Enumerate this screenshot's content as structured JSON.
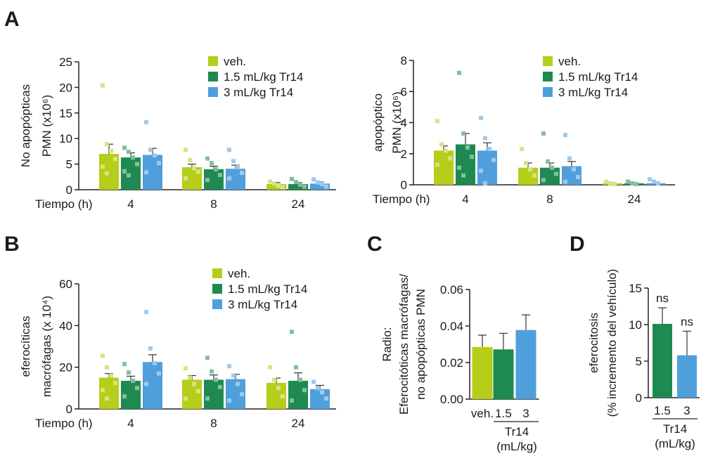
{
  "chart_data": [
    {
      "panel": "A",
      "type": "bar",
      "ylabel_lines": [
        "No apopópticas",
        "PMN (x10⁶)"
      ],
      "xlabel": "Tiempo (h)",
      "categories": [
        "4",
        "8",
        "24"
      ],
      "ylim": [
        0,
        25
      ],
      "yticks": [
        0,
        5,
        10,
        15,
        20,
        25
      ],
      "series": [
        {
          "name": "veh.",
          "color": "#b6cd1a",
          "values": [
            7.0,
            4.4,
            1.1
          ],
          "errors": [
            1.9,
            0.6,
            0.3
          ],
          "points": [
            [
              20.4,
              8.9,
              7.6,
              6.0,
              4.5,
              3.2
            ],
            [
              7.8,
              5.8,
              4.2,
              3.5,
              2.2
            ],
            [
              1.6,
              1.2,
              0.8,
              0.5
            ]
          ]
        },
        {
          "name": "1.5 mL/kg Tr14",
          "color": "#1e8a52",
          "values": [
            6.3,
            4.0,
            1.1
          ],
          "errors": [
            0.9,
            0.6,
            0.3
          ],
          "points": [
            [
              8.2,
              7.4,
              6.3,
              5.0,
              3.6,
              2.8
            ],
            [
              6.1,
              5.2,
              4.0,
              2.9,
              1.9
            ],
            [
              2.1,
              1.5,
              1.0,
              0.6
            ]
          ]
        },
        {
          "name": "3 mL/kg Tr14",
          "color": "#4f9fdc",
          "values": [
            6.8,
            4.1,
            1.2
          ],
          "errors": [
            1.3,
            0.7,
            0.3
          ],
          "points": [
            [
              13.2,
              7.8,
              6.7,
              5.2,
              3.4
            ],
            [
              7.8,
              5.6,
              4.4,
              3.3,
              2.2
            ],
            [
              2.0,
              1.4,
              1.1,
              0.6
            ]
          ]
        }
      ]
    },
    {
      "panel": "A",
      "type": "bar",
      "ylabel_lines": [
        "apopóptico",
        "PMN (x10⁶)"
      ],
      "xlabel": "Tiempo (h)",
      "categories": [
        "4",
        "8",
        "24"
      ],
      "ylim": [
        0,
        8
      ],
      "yticks": [
        0,
        2,
        4,
        6,
        8
      ],
      "series": [
        {
          "name": "veh.",
          "color": "#b6cd1a",
          "values": [
            2.2,
            1.1,
            0.1
          ],
          "errors": [
            0.3,
            0.3,
            0.03
          ],
          "points": [
            [
              4.1,
              2.6,
              2.2,
              1.7,
              1.3
            ],
            [
              2.3,
              1.4,
              1.0,
              0.6
            ],
            [
              0.2,
              0.1,
              0.05
            ]
          ]
        },
        {
          "name": "1.5 mL/kg Tr14",
          "color": "#1e8a52",
          "values": [
            2.6,
            1.1,
            0.1
          ],
          "errors": [
            0.7,
            0.3,
            0.03
          ],
          "points": [
            [
              7.2,
              3.3,
              2.4,
              1.8,
              1.1,
              0.6
            ],
            [
              3.3,
              1.5,
              1.1,
              0.7,
              0.3
            ],
            [
              0.2,
              0.1,
              0.05
            ]
          ]
        },
        {
          "name": "3 mL/kg Tr14",
          "color": "#4f9fdc",
          "values": [
            2.2,
            1.2,
            0.1
          ],
          "errors": [
            0.5,
            0.3,
            0.05
          ],
          "points": [
            [
              4.3,
              3.0,
              2.3,
              1.6,
              0.9,
              0.1
            ],
            [
              3.2,
              1.7,
              1.0,
              0.5,
              0.2
            ],
            [
              0.35,
              0.2,
              0.1
            ]
          ]
        }
      ]
    },
    {
      "panel": "B",
      "type": "bar",
      "ylabel_lines": [
        "eferocíticas",
        "macrófagas (x 10⁴)"
      ],
      "xlabel": "Tiempo (h)",
      "categories": [
        "4",
        "8",
        "24"
      ],
      "ylim": [
        0,
        60
      ],
      "yticks": [
        0,
        20,
        40,
        60
      ],
      "series": [
        {
          "name": "veh.",
          "color": "#b6cd1a",
          "values": [
            15,
            14,
            12.5
          ],
          "errors": [
            2.0,
            2.0,
            2.3
          ],
          "points": [
            [
              25.5,
              20.0,
              16.0,
              12.5,
              9.0,
              5.0
            ],
            [
              19.5,
              15.0,
              12.0,
              8.5,
              5.0
            ],
            [
              20.0,
              14.0,
              10.0,
              6.0
            ]
          ]
        },
        {
          "name": "1.5 mL/kg Tr14",
          "color": "#1e8a52",
          "values": [
            13.5,
            14,
            13.5
          ],
          "errors": [
            2.2,
            2.3,
            3.8
          ],
          "points": [
            [
              21.5,
              17.5,
              13.5,
              10.0,
              6.0
            ],
            [
              24.5,
              18.0,
              14.0,
              10.5,
              5.0
            ],
            [
              37.0,
              20.0,
              14.0,
              9.0,
              4.0
            ]
          ]
        },
        {
          "name": "3 mL/kg Tr14",
          "color": "#4f9fdc",
          "values": [
            22.5,
            14.3,
            9.5
          ],
          "errors": [
            3.5,
            2.3,
            1.8
          ],
          "points": [
            [
              46.5,
              29.0,
              22.0,
              17.0,
              12.0
            ],
            [
              20.5,
              16.0,
              12.0,
              7.0,
              4.0
            ],
            [
              13.0,
              10.0,
              8.0,
              5.0
            ]
          ]
        }
      ]
    },
    {
      "panel": "C",
      "type": "bar",
      "ylabel_lines": [
        "Radio:",
        "Eferocitóticas macrófagas/",
        "no apopópticas PMN"
      ],
      "categories": [
        "veh.",
        "1.5",
        "3"
      ],
      "group_label_lines": [
        "Tr14",
        "(mL/kg)"
      ],
      "ylim": [
        0,
        0.06
      ],
      "yticks": [
        "0.00",
        "0.02",
        "0.04",
        "0.06"
      ],
      "values": [
        0.0285,
        0.0272,
        0.0378
      ],
      "errors": [
        0.0065,
        0.0088,
        0.0083
      ],
      "colors": [
        "#b6cd1a",
        "#1e8a52",
        "#4f9fdc"
      ]
    },
    {
      "panel": "D",
      "type": "bar",
      "ylabel_lines": [
        "eferocitosis",
        "(% incremento del vehículo)"
      ],
      "categories": [
        "1.5",
        "3"
      ],
      "group_label_lines": [
        "Tr14",
        "(mL/kg)"
      ],
      "ylim": [
        0,
        15
      ],
      "yticks": [
        0,
        5,
        10,
        15
      ],
      "values": [
        10.1,
        5.8
      ],
      "errors": [
        2.2,
        3.3
      ],
      "significance": [
        "ns",
        "ns"
      ],
      "colors": [
        "#1e8a52",
        "#4f9fdc"
      ]
    }
  ]
}
